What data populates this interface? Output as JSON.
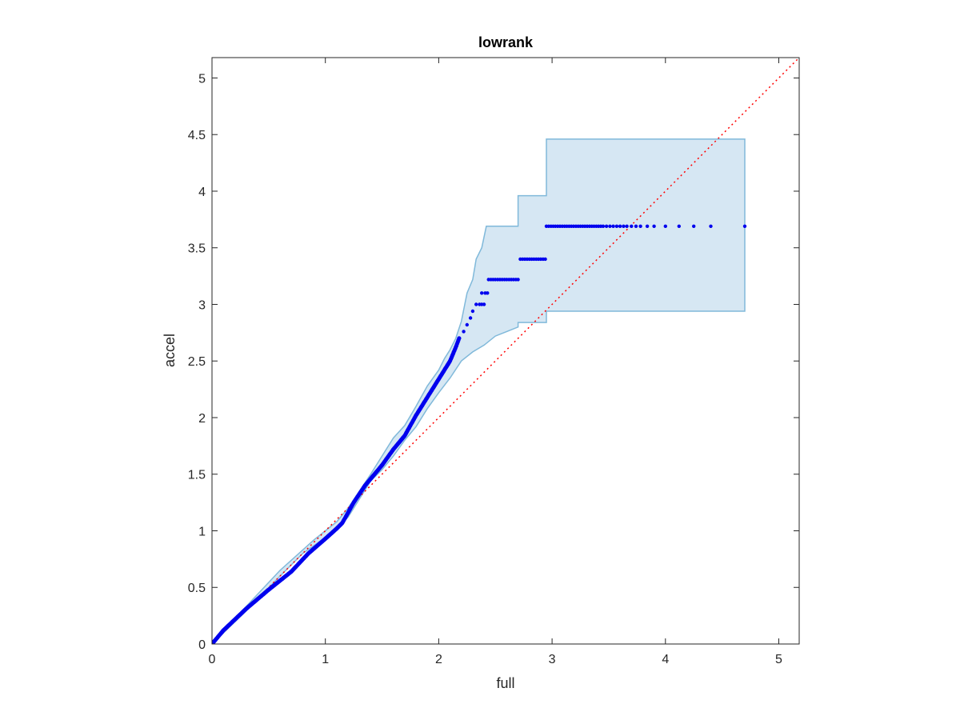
{
  "chart_data": {
    "type": "scatter",
    "title": "lowrank",
    "xlabel": "full",
    "ylabel": "accel",
    "xlim": [
      0,
      5.18
    ],
    "ylim": [
      0,
      5.18
    ],
    "x_ticks": [
      "0",
      "1",
      "2",
      "3",
      "4",
      "5"
    ],
    "y_ticks": [
      "0",
      "0.5",
      "1",
      "1.5",
      "2",
      "2.5",
      "3",
      "3.5",
      "4",
      "4.5",
      "5"
    ],
    "grid": false,
    "legend": "none",
    "colors": {
      "points": "#0000ee",
      "band_fill": "#d6e7f3",
      "band_edge": "#80b9da",
      "reference_line": "#ff0000",
      "axes": "#262626"
    },
    "reference_line": {
      "style": "dotted",
      "from": [
        0,
        0
      ],
      "to": [
        5.18,
        5.18
      ]
    },
    "band_upper": [
      [
        0,
        0
      ],
      [
        0.3,
        0.33
      ],
      [
        0.6,
        0.65
      ],
      [
        0.9,
        0.92
      ],
      [
        1.1,
        1.08
      ],
      [
        1.2,
        1.2
      ],
      [
        1.4,
        1.5
      ],
      [
        1.5,
        1.66
      ],
      [
        1.6,
        1.82
      ],
      [
        1.7,
        1.93
      ],
      [
        1.8,
        2.1
      ],
      [
        1.9,
        2.28
      ],
      [
        2.0,
        2.42
      ],
      [
        2.05,
        2.52
      ],
      [
        2.1,
        2.6
      ],
      [
        2.15,
        2.7
      ],
      [
        2.2,
        2.85
      ],
      [
        2.25,
        3.1
      ],
      [
        2.3,
        3.22
      ],
      [
        2.33,
        3.4
      ],
      [
        2.38,
        3.5
      ],
      [
        2.42,
        3.69
      ],
      [
        2.7,
        3.69
      ],
      [
        2.7,
        3.96
      ],
      [
        2.95,
        3.96
      ],
      [
        2.95,
        4.46
      ],
      [
        4.7,
        4.46
      ],
      [
        4.7,
        2.94
      ]
    ],
    "band_lower": [
      [
        4.7,
        2.94
      ],
      [
        2.95,
        2.94
      ],
      [
        2.95,
        2.84
      ],
      [
        2.7,
        2.84
      ],
      [
        2.7,
        2.8
      ],
      [
        2.5,
        2.72
      ],
      [
        2.4,
        2.64
      ],
      [
        2.3,
        2.58
      ],
      [
        2.2,
        2.5
      ],
      [
        2.1,
        2.35
      ],
      [
        2.0,
        2.22
      ],
      [
        1.9,
        2.08
      ],
      [
        1.8,
        1.92
      ],
      [
        1.7,
        1.8
      ],
      [
        1.6,
        1.66
      ],
      [
        1.5,
        1.54
      ],
      [
        1.4,
        1.44
      ],
      [
        1.3,
        1.28
      ],
      [
        1.2,
        1.12
      ],
      [
        1.1,
        1.02
      ],
      [
        1.0,
        0.94
      ],
      [
        0.8,
        0.8
      ],
      [
        0.6,
        0.6
      ],
      [
        0.3,
        0.29
      ],
      [
        0,
        0
      ]
    ],
    "trend_curve": [
      [
        0,
        0
      ],
      [
        0.1,
        0.12
      ],
      [
        0.3,
        0.31
      ],
      [
        0.5,
        0.48
      ],
      [
        0.7,
        0.64
      ],
      [
        0.85,
        0.8
      ],
      [
        1.0,
        0.93
      ],
      [
        1.1,
        1.02
      ],
      [
        1.15,
        1.07
      ],
      [
        1.25,
        1.25
      ],
      [
        1.35,
        1.4
      ],
      [
        1.5,
        1.58
      ],
      [
        1.6,
        1.72
      ],
      [
        1.7,
        1.84
      ],
      [
        1.8,
        2.02
      ],
      [
        1.9,
        2.18
      ],
      [
        2.0,
        2.34
      ],
      [
        2.05,
        2.42
      ],
      [
        2.1,
        2.5
      ],
      [
        2.15,
        2.62
      ],
      [
        2.18,
        2.7
      ]
    ],
    "trend_point_count": 360,
    "discrete_points": [
      [
        2.22,
        2.76
      ],
      [
        2.25,
        2.82
      ],
      [
        2.28,
        2.88
      ],
      [
        2.3,
        2.94
      ],
      [
        2.33,
        3.0
      ],
      [
        2.36,
        3.0
      ],
      [
        2.38,
        3.0
      ],
      [
        2.4,
        3.0
      ],
      [
        2.38,
        3.1
      ],
      [
        2.41,
        3.1
      ],
      [
        2.43,
        3.1
      ]
    ],
    "steps": [
      {
        "y": 3.22,
        "x_values": [
          2.44,
          2.46,
          2.48,
          2.5,
          2.52,
          2.54,
          2.56,
          2.58,
          2.6,
          2.62,
          2.64,
          2.66,
          2.68,
          2.7
        ]
      },
      {
        "y": 3.4,
        "x_values": [
          2.72,
          2.74,
          2.76,
          2.78,
          2.8,
          2.82,
          2.84,
          2.86,
          2.88,
          2.9,
          2.92,
          2.94
        ]
      },
      {
        "y": 3.69,
        "x_values": [
          2.95,
          2.97,
          2.99,
          3.01,
          3.03,
          3.05,
          3.07,
          3.09,
          3.11,
          3.13,
          3.15,
          3.17,
          3.19,
          3.21,
          3.23,
          3.25,
          3.27,
          3.29,
          3.31,
          3.33,
          3.35,
          3.37,
          3.39,
          3.41,
          3.43,
          3.45,
          3.48,
          3.51,
          3.54,
          3.57,
          3.6,
          3.63,
          3.66,
          3.7,
          3.74,
          3.78,
          3.84,
          3.9,
          4.0,
          4.12,
          4.25,
          4.4,
          4.7
        ]
      }
    ]
  }
}
